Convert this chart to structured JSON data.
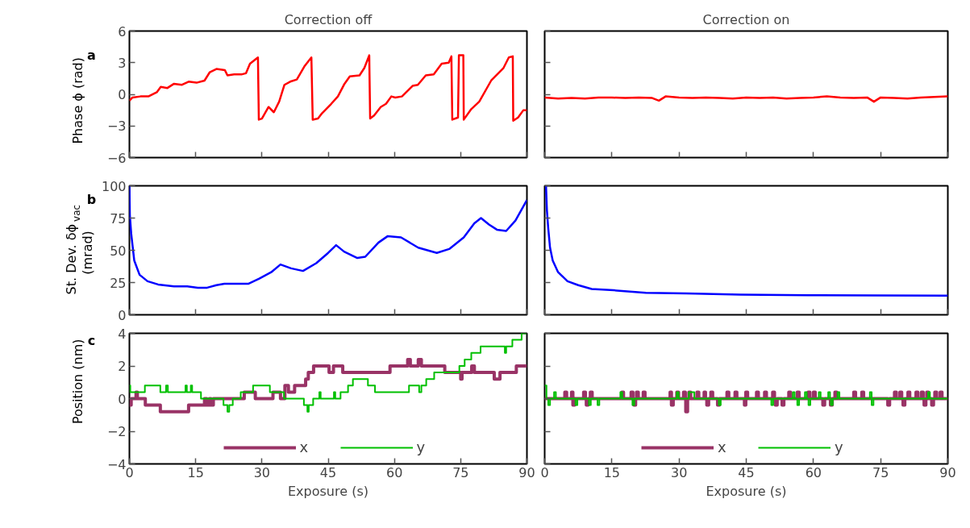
{
  "chart_data": [
    {
      "type": "line",
      "title": "Correction off",
      "ylabel": "Phase ϕ (rad)",
      "annotations": [
        "a"
      ],
      "color": "#ff0000",
      "xlim": [
        0,
        90
      ],
      "xticks": [
        0,
        15,
        30,
        45,
        60,
        75,
        90
      ],
      "ylim": [
        -6,
        6
      ],
      "yticks": [
        -6,
        -3,
        0,
        3,
        6
      ],
      "tick_labels": "y",
      "x": [
        0,
        0.7,
        2.5,
        4.3,
        6.2,
        7.1,
        8.6,
        10.1,
        11.9,
        13.4,
        15.2,
        17.0,
        18.2,
        19.7,
        21.6,
        22.2,
        23.7,
        25.5,
        26.4,
        27.3,
        29.1,
        29.3,
        30.0,
        31.5,
        32.7,
        33.9,
        35.1,
        36.4,
        37.9,
        39.7,
        41.2,
        41.5,
        42.7,
        43.6,
        45.7,
        47.2,
        48.7,
        49.9,
        52.1,
        53.2,
        54.3,
        54.5,
        55.4,
        56.9,
        58.1,
        59.3,
        60.2,
        61.7,
        64.1,
        65.3,
        67.1,
        68.9,
        70.7,
        72.3,
        72.9,
        73.1,
        74.4,
        74.6,
        75.6,
        75.7,
        77.4,
        79.2,
        81.9,
        84.7,
        85.9,
        86.8,
        86.9,
        88.0,
        89.2,
        90
      ],
      "values": [
        -0.6,
        -0.3,
        -0.2,
        -0.2,
        0.2,
        0.7,
        0.6,
        1.0,
        0.9,
        1.2,
        1.1,
        1.3,
        2.1,
        2.4,
        2.3,
        1.8,
        1.9,
        1.9,
        2.0,
        2.9,
        3.5,
        -2.4,
        -2.3,
        -1.2,
        -1.7,
        -0.7,
        0.9,
        1.2,
        1.4,
        2.7,
        3.5,
        -2.4,
        -2.3,
        -1.8,
        -0.9,
        -0.2,
        1.0,
        1.7,
        1.8,
        2.5,
        3.7,
        -2.3,
        -2.0,
        -1.2,
        -0.9,
        -0.2,
        -0.3,
        -0.2,
        0.8,
        0.9,
        1.8,
        1.9,
        2.9,
        3.0,
        3.6,
        -2.4,
        -2.2,
        3.7,
        3.7,
        -2.4,
        -1.4,
        -0.7,
        1.3,
        2.5,
        3.5,
        3.6,
        -2.5,
        -2.2,
        -1.5,
        -1.5
      ]
    },
    {
      "type": "line",
      "title": "Correction on",
      "color": "#ff0000",
      "xlim": [
        0,
        90
      ],
      "xticks": [
        0,
        15,
        30,
        45,
        60,
        75,
        90
      ],
      "ylim": [
        -6,
        6
      ],
      "yticks": [
        -6,
        -3,
        0,
        3,
        6
      ],
      "tick_labels": false,
      "x": [
        0,
        3,
        6,
        9,
        12,
        15,
        18,
        21,
        24,
        25.5,
        27,
        30,
        33,
        36,
        39,
        42,
        45,
        48,
        51,
        54,
        57,
        60,
        63,
        66,
        69,
        72,
        73.5,
        75,
        78,
        81,
        84,
        87,
        90
      ],
      "values": [
        -0.3,
        -0.4,
        -0.35,
        -0.4,
        -0.3,
        -0.3,
        -0.35,
        -0.3,
        -0.35,
        -0.6,
        -0.2,
        -0.3,
        -0.35,
        -0.3,
        -0.35,
        -0.4,
        -0.3,
        -0.35,
        -0.3,
        -0.4,
        -0.35,
        -0.3,
        -0.2,
        -0.3,
        -0.35,
        -0.3,
        -0.7,
        -0.3,
        -0.35,
        -0.4,
        -0.3,
        -0.25,
        -0.2
      ]
    },
    {
      "type": "line",
      "ylabel": "St. Dev. δϕ$_{vac}$ (mrad)",
      "annotations": [
        "b"
      ],
      "color": "#0000ff",
      "xlim": [
        0,
        90
      ],
      "xticks": [
        0,
        15,
        30,
        45,
        60,
        75,
        90
      ],
      "ylim": [
        0,
        100
      ],
      "yticks": [
        0,
        25,
        50,
        75,
        100
      ],
      "tick_labels": "y",
      "x": [
        0,
        0.1,
        0.4,
        1.1,
        2.3,
        4.1,
        6.5,
        10.1,
        13.1,
        15.5,
        17.6,
        19.7,
        21.5,
        26.9,
        29.4,
        32.1,
        34.2,
        36.6,
        39.3,
        42.3,
        45.0,
        46.8,
        48.6,
        51.6,
        53.4,
        56.4,
        58.5,
        61.5,
        65.4,
        69.6,
        72.4,
        75.7,
        78.1,
        79.6,
        81.4,
        83.2,
        85.3,
        87.4,
        90
      ],
      "values": [
        100,
        77,
        63,
        42,
        31,
        26,
        23.5,
        22,
        22,
        21,
        21,
        23,
        24,
        24,
        28,
        33,
        39,
        36,
        34,
        40,
        48,
        54,
        49,
        44,
        45,
        56,
        61,
        60,
        52,
        48,
        51,
        60,
        71,
        75,
        70,
        66,
        65,
        73,
        89
      ]
    },
    {
      "type": "line",
      "color": "#0000ff",
      "xlim": [
        0,
        90
      ],
      "xticks": [
        0,
        15,
        30,
        45,
        60,
        75,
        90
      ],
      "ylim": [
        0,
        100
      ],
      "yticks": [
        0,
        25,
        50,
        75,
        100
      ],
      "tick_labels": false,
      "x": [
        0.3,
        0.5,
        0.8,
        1.2,
        1.8,
        3.0,
        5.1,
        7.5,
        10.5,
        15.4,
        22.6,
        31.6,
        43.7,
        58.8,
        73.8,
        90
      ],
      "values": [
        100,
        81,
        67,
        52,
        42,
        33,
        26,
        23,
        20,
        19,
        17,
        16.5,
        15.6,
        15.2,
        15,
        14.8
      ]
    },
    {
      "type": "step",
      "ylabel": "Position (nm)",
      "xlabel": "Exposure (s)",
      "annotations": [
        "c"
      ],
      "legend": "bottom",
      "xlim": [
        0,
        90
      ],
      "xticks": [
        0,
        15,
        30,
        45,
        60,
        75,
        90
      ],
      "ylim": [
        -4,
        4
      ],
      "yticks": [
        -4,
        -2,
        0,
        2,
        4
      ],
      "series": [
        {
          "name": "x",
          "color": "#993366",
          "x": [
            0,
            0.4,
            1.5,
            1.8,
            3.6,
            7.0,
            13.4,
            17.0,
            17.5,
            18.1,
            18.5,
            19.0,
            26.0,
            28.5,
            32.5,
            34.2,
            35.2,
            36.0,
            37.4,
            39.9,
            40.5,
            41.7,
            45.2,
            46.2,
            48.3,
            59.0,
            63.0,
            63.6,
            65.4,
            66.1,
            71.4,
            72.4,
            75.0,
            75.3,
            77.5,
            78.1,
            82.6,
            83.9,
            87.6,
            90
          ],
          "values": [
            -0.4,
            0,
            0.4,
            0,
            -0.4,
            -0.8,
            -0.4,
            0,
            -0.4,
            0,
            -0.4,
            0,
            0.4,
            0,
            0.4,
            0,
            0.8,
            0.4,
            0.8,
            1.2,
            1.6,
            2.0,
            1.6,
            2.0,
            1.6,
            2.0,
            2.4,
            2.0,
            2.4,
            2.0,
            1.6,
            1.6,
            1.2,
            1.6,
            2.0,
            1.6,
            1.2,
            1.6,
            2.0,
            2.0
          ]
        },
        {
          "name": "y",
          "color": "#00c000",
          "x": [
            0,
            0.2,
            3.5,
            7.0,
            8.3,
            8.7,
            12.7,
            13.0,
            13.9,
            14.2,
            16.2,
            21.3,
            22.2,
            22.6,
            23.4,
            25.2,
            28.0,
            31.8,
            35.0,
            39.5,
            40.3,
            40.6,
            41.6,
            43.0,
            43.3,
            46.3,
            46.6,
            47.8,
            49.5,
            50.6,
            54.0,
            55.6,
            63.3,
            65.6,
            66.1,
            67.2,
            69.0,
            74.7,
            75.9,
            77.4,
            79.5,
            85.0,
            85.3,
            86.7,
            88.8,
            90
          ],
          "values": [
            0.8,
            0.4,
            0.8,
            0.4,
            0.8,
            0.4,
            0.8,
            0.4,
            0.8,
            0.4,
            0,
            -0.4,
            -0.8,
            -0.4,
            0,
            0.4,
            0.8,
            0.4,
            0,
            -0.4,
            -0.8,
            -0.4,
            0,
            0.4,
            0,
            0.4,
            0,
            0.4,
            0.8,
            1.2,
            0.8,
            0.4,
            0.8,
            0.4,
            0.8,
            1.2,
            1.6,
            2.0,
            2.4,
            2.8,
            3.2,
            2.8,
            3.2,
            3.6,
            4.0,
            4.0
          ]
        }
      ]
    },
    {
      "type": "step",
      "xlabel": "Exposure (s)",
      "legend": "bottom",
      "xlim": [
        0,
        90
      ],
      "xticks": [
        0,
        15,
        30,
        45,
        60,
        75,
        90
      ],
      "ylim": [
        -4,
        4
      ],
      "yticks": [
        -4,
        -2,
        0,
        2,
        4
      ],
      "tick_labels": "x",
      "series": [
        {
          "name": "x",
          "color": "#993366",
          "x": [
            0,
            4.5,
            4.9,
            6.0,
            6.3,
            6.7,
            8.7,
            9.1,
            9.3,
            9.7,
            10.2,
            10.6,
            17.2,
            17.6,
            19.3,
            19.7,
            19.9,
            20.3,
            20.5,
            20.9,
            22.0,
            22.4,
            28.0,
            28.3,
            28.7,
            29.5,
            29.9,
            31.0,
            31.4,
            31.5,
            31.9,
            32.2,
            32.6,
            34.0,
            34.4,
            35.6,
            35.9,
            36.2,
            36.6,
            37.1,
            37.5,
            38.6,
            39.0,
            40.7,
            41.1,
            42.5,
            42.9,
            44.6,
            44.9,
            45.3,
            47.3,
            47.7,
            49.1,
            49.5,
            50.9,
            51.3,
            51.5,
            51.9,
            53.0,
            53.4,
            54.5,
            54.9,
            56.4,
            56.8,
            58.8,
            59.2,
            60.0,
            60.4,
            62.1,
            62.5,
            63.8,
            64.2,
            64.8,
            65.2,
            69.0,
            69.4,
            70.8,
            71.2,
            76.6,
            77.0,
            78.1,
            78.5,
            79.3,
            79.7,
            80.0,
            80.4,
            81.1,
            81.5,
            82.9,
            83.3,
            84.1,
            84.5,
            84.7,
            85.1,
            85.3,
            85.7,
            86.4,
            86.8,
            87.1,
            87.5,
            88.3,
            88.7,
            90
          ],
          "values": [
            0,
            0.4,
            0,
            0.4,
            -0.4,
            0,
            0.4,
            0,
            -0.4,
            0,
            0.4,
            0,
            0.4,
            0,
            0.4,
            0,
            -0.4,
            0,
            0.4,
            0,
            0.4,
            0,
            0.4,
            -0.4,
            0,
            0.4,
            0,
            0.4,
            0,
            -0.8,
            0,
            0.4,
            0,
            0.4,
            0,
            0.4,
            0,
            -0.4,
            0,
            0.4,
            0,
            -0.4,
            0,
            0.4,
            0,
            0.4,
            0,
            -0.4,
            0.4,
            0,
            0.4,
            0,
            0.4,
            0,
            0.4,
            0,
            -0.4,
            0,
            -0.4,
            0,
            0.4,
            0,
            0.4,
            0,
            0.4,
            0,
            0.4,
            0,
            -0.4,
            0,
            -0.4,
            0,
            0.4,
            0,
            0.4,
            0,
            0.4,
            0,
            -0.4,
            0,
            0.4,
            0,
            0.4,
            0,
            -0.4,
            0,
            0.4,
            0,
            0.4,
            0,
            0.4,
            0,
            -0.4,
            0,
            0.4,
            0,
            -0.4,
            0,
            0.4,
            0,
            0.4,
            0,
            0
          ]
        },
        {
          "name": "y",
          "color": "#00c000",
          "x": [
            0,
            0.4,
            0.8,
            1.2,
            2.1,
            2.5,
            6.9,
            7.3,
            9.9,
            10.3,
            11.8,
            12.2,
            16.9,
            17.3,
            19.6,
            20.0,
            29.5,
            29.9,
            32.2,
            33.4,
            38.9,
            39.3,
            50.6,
            51.0,
            55.4,
            55.8,
            56.4,
            56.8,
            58.1,
            58.5,
            58.9,
            59.3,
            61.2,
            61.6,
            63.3,
            63.7,
            63.9,
            64.3,
            65.4,
            65.8,
            72.6,
            73.0,
            73.4,
            85.6,
            86.0,
            90
          ],
          "values": [
            0.8,
            0,
            -0.4,
            0,
            0.4,
            0,
            -0.4,
            0,
            -0.4,
            0,
            -0.4,
            0,
            0.4,
            0,
            -0.4,
            0,
            0.4,
            0,
            0.4,
            0,
            -0.4,
            0,
            -0.4,
            0,
            0.4,
            0,
            -0.4,
            0,
            0.4,
            0,
            -0.4,
            0,
            0.4,
            0,
            0.4,
            0,
            -0.4,
            0,
            0.4,
            0,
            0.4,
            -0.4,
            0,
            0.4,
            0,
            0
          ]
        }
      ]
    }
  ]
}
